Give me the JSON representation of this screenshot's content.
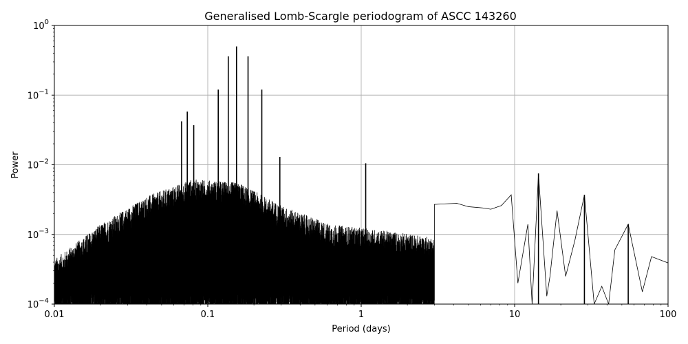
{
  "chart_data": {
    "type": "line",
    "title": "Generalised Lomb-Scargle periodogram of ASCC 143260",
    "xlabel": "Period (days)",
    "ylabel": "Power",
    "xscale": "log",
    "yscale": "log",
    "xlim": [
      0.01,
      100
    ],
    "ylim": [
      0.0001,
      1
    ],
    "grid": true,
    "x_ticks": [
      {
        "value": 0.01,
        "label": "0.01"
      },
      {
        "value": 0.1,
        "label": "0.1"
      },
      {
        "value": 1,
        "label": "1"
      },
      {
        "value": 10,
        "label": "10"
      },
      {
        "value": 100,
        "label": "100"
      }
    ],
    "y_ticks": [
      {
        "value": 0.0001,
        "base": "10",
        "exp": "−4"
      },
      {
        "value": 0.001,
        "base": "10",
        "exp": "−3"
      },
      {
        "value": 0.01,
        "base": "10",
        "exp": "−2"
      },
      {
        "value": 0.1,
        "base": "10",
        "exp": "−1"
      },
      {
        "value": 1,
        "base": "10",
        "exp": "0"
      }
    ],
    "peaks": [
      {
        "period": 0.0735,
        "power": 0.058
      },
      {
        "period": 0.0675,
        "power": 0.042
      },
      {
        "period": 0.081,
        "power": 0.037
      },
      {
        "period": 0.117,
        "power": 0.12
      },
      {
        "period": 0.136,
        "power": 0.36
      },
      {
        "period": 0.154,
        "power": 0.5
      },
      {
        "period": 0.183,
        "power": 0.36
      },
      {
        "period": 0.225,
        "power": 0.12
      },
      {
        "period": 0.295,
        "power": 0.013
      },
      {
        "period": 1.07,
        "power": 0.0105
      },
      {
        "period": 14.3,
        "power": 0.0075
      },
      {
        "period": 28.5,
        "power": 0.0037
      },
      {
        "period": 55,
        "power": 0.0014
      }
    ],
    "tail": [
      [
        3.0,
        0.0027
      ],
      [
        4.2,
        0.0028
      ],
      [
        5.0,
        0.0025
      ],
      [
        6.2,
        0.0024
      ],
      [
        7.0,
        0.0023
      ],
      [
        8.2,
        0.0026
      ],
      [
        9.5,
        0.0037
      ],
      [
        10.5,
        0.0002
      ],
      [
        12.2,
        0.0014
      ],
      [
        13.0,
        0.0001
      ],
      [
        14.3,
        0.0075
      ],
      [
        16.2,
        0.00013
      ],
      [
        17.0,
        0.00025
      ],
      [
        18.9,
        0.0022
      ],
      [
        21.5,
        0.00025
      ],
      [
        24.7,
        0.00082
      ],
      [
        28.5,
        0.0037
      ],
      [
        33.0,
        0.0001
      ],
      [
        37.0,
        0.00018
      ],
      [
        41.0,
        0.0001
      ],
      [
        45.0,
        0.0006
      ],
      [
        55.0,
        0.0014
      ],
      [
        68.0,
        0.00015
      ],
      [
        78.0,
        0.00048
      ],
      [
        100.0,
        0.00039
      ]
    ]
  }
}
